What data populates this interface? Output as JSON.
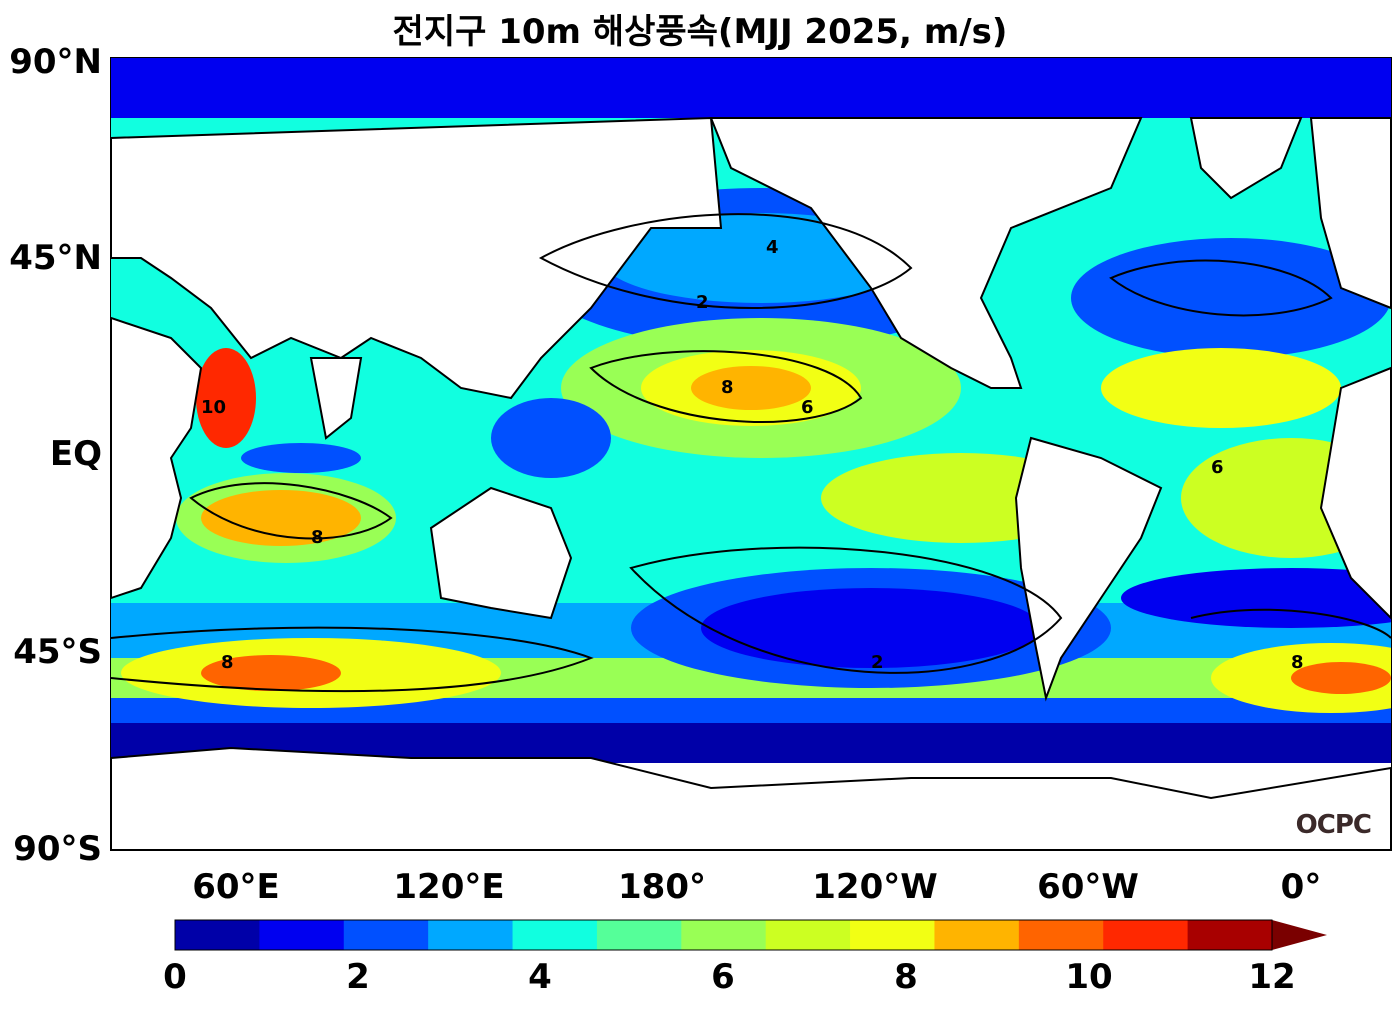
{
  "title": "전지구 10m 해상풍속(MJJ 2025, m/s)",
  "lat_labels": [
    "90°N",
    "45°N",
    "EQ",
    "45°S",
    "90°S"
  ],
  "lon_labels": [
    "60°E",
    "120°E",
    "180°",
    "120°W",
    "60°W",
    "0°"
  ],
  "colorbar": {
    "ticks": [
      "0",
      "2",
      "4",
      "6",
      "8",
      "10",
      "12"
    ],
    "colors": [
      "#0000a8",
      "#0000f0",
      "#0050ff",
      "#00a8ff",
      "#11ffe0",
      "#55ff99",
      "#99ff55",
      "#ccff22",
      "#f2ff14",
      "#ffb400",
      "#ff6400",
      "#ff2800",
      "#a80000",
      "#7a0000"
    ],
    "extend": "max"
  },
  "logo": "OCPC",
  "contour_labels": [
    "2",
    "4",
    "6",
    "8",
    "10"
  ]
}
